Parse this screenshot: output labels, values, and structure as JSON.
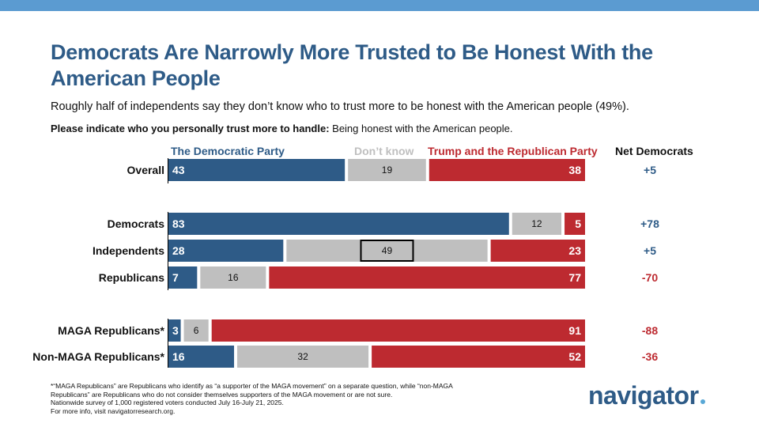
{
  "colors": {
    "dem": "#2e5b87",
    "dk": "#bfbfbf",
    "rep": "#bd2a30",
    "topbar": "#5b9bd1"
  },
  "title": "Democrats Are Narrowly More Trusted to Be Honest With the American People",
  "subtitle": "Roughly half of independents say they don’t know who to trust more to be honest with the American people (49%).",
  "question_bold": "Please indicate who you personally trust more to handle:",
  "question_rest": " Being honest with the American people.",
  "footnotes": [
    "*“MAGA Republicans” are Republicans who identify as “a supporter of the MAGA movement” on a separate question, while “non-MAGA Republicans” are Republicans who do not consider themselves supporters of the MAGA movement or are not sure.",
    "Nationwide survey of 1,000 registered voters conducted July 16-July 21, 2025.",
    "For more info, visit navigatorresearch.org."
  ],
  "logo": "navigator",
  "chart_data": {
    "type": "bar",
    "orientation": "horizontal-stacked-100",
    "series": [
      {
        "name": "The Democratic Party",
        "color": "#2e5b87"
      },
      {
        "name": "Don’t know",
        "color": "#bfbfbf"
      },
      {
        "name": "Trump and the Republican Party",
        "color": "#bd2a30"
      }
    ],
    "net_header": "Net Democrats",
    "rows": [
      {
        "label": "Overall",
        "dem": 43,
        "dk": 19,
        "rep": 38,
        "net": "+5"
      },
      {
        "label": "Democrats",
        "dem": 83,
        "dk": 12,
        "rep": 5,
        "net": "+78"
      },
      {
        "label": "Independents",
        "dem": 28,
        "dk": 49,
        "rep": 23,
        "net": "+5",
        "highlight_dk": true
      },
      {
        "label": "Republicans",
        "dem": 7,
        "dk": 16,
        "rep": 77,
        "net": "-70"
      },
      {
        "label": "MAGA Republicans*",
        "dem": 3,
        "dk": 6,
        "rep": 91,
        "net": "-88"
      },
      {
        "label": "Non-MAGA Republicans*",
        "dem": 16,
        "dk": 32,
        "rep": 52,
        "net": "-36"
      }
    ]
  }
}
